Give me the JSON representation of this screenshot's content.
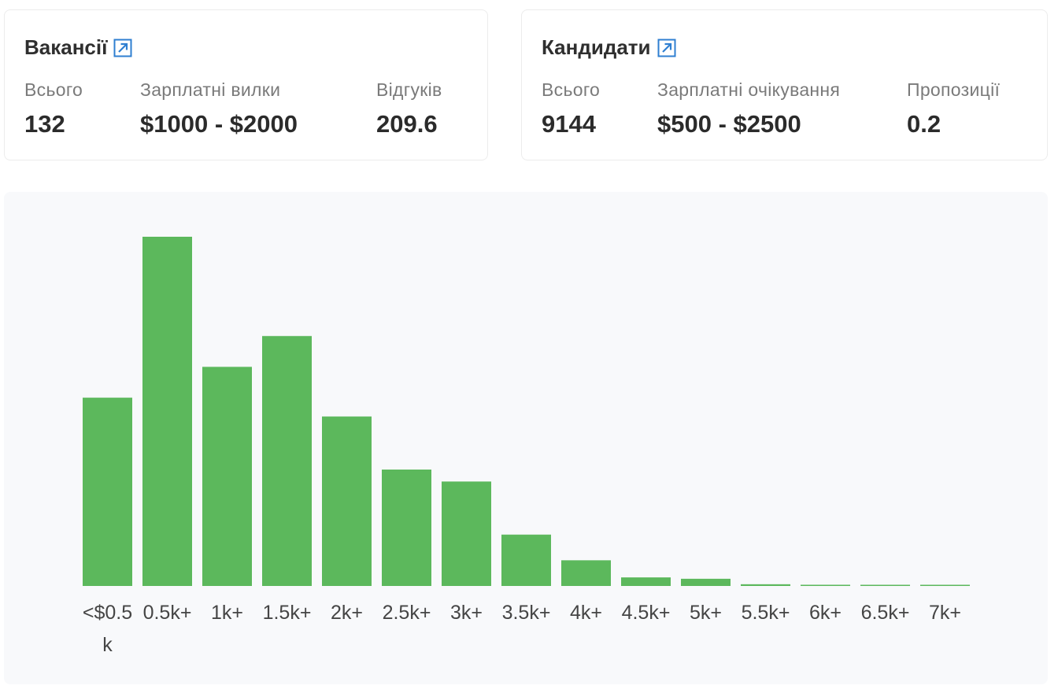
{
  "vacancies": {
    "title": "Вакансії",
    "link_icon": "external-link-icon",
    "stats": [
      {
        "label": "Всього",
        "value": "132"
      },
      {
        "label": "Зарплатні вилки",
        "value": "$1000 - $2000"
      },
      {
        "label": "Відгуків",
        "value": "209.6"
      }
    ]
  },
  "candidates": {
    "title": "Кандидати",
    "link_icon": "external-link-icon",
    "stats": [
      {
        "label": "Всього",
        "value": "9144"
      },
      {
        "label": "Зарплатні очікування",
        "value": "$500 - $2500"
      },
      {
        "label": "Пропозиції",
        "value": "0.2"
      }
    ]
  },
  "colors": {
    "bar": "#5cb85c",
    "link_icon": "#2f7fd1",
    "panel_bg": "#f8f9fb"
  },
  "chart_data": {
    "type": "bar",
    "categories": [
      "<$0.5k",
      "0.5k+",
      "1k+",
      "1.5k+",
      "2k+",
      "2.5k+",
      "3k+",
      "3.5k+",
      "4k+",
      "4.5k+",
      "5k+",
      "5.5k+",
      "6k+",
      "6.5k+",
      "7k+"
    ],
    "values": [
      1100,
      2040,
      1280,
      1460,
      990,
      680,
      610,
      300,
      150,
      50,
      42,
      10,
      7,
      5,
      5
    ],
    "title": "",
    "xlabel": "",
    "ylabel": "",
    "ylim": [
      0,
      2040
    ],
    "grid": false,
    "legend": "none"
  }
}
